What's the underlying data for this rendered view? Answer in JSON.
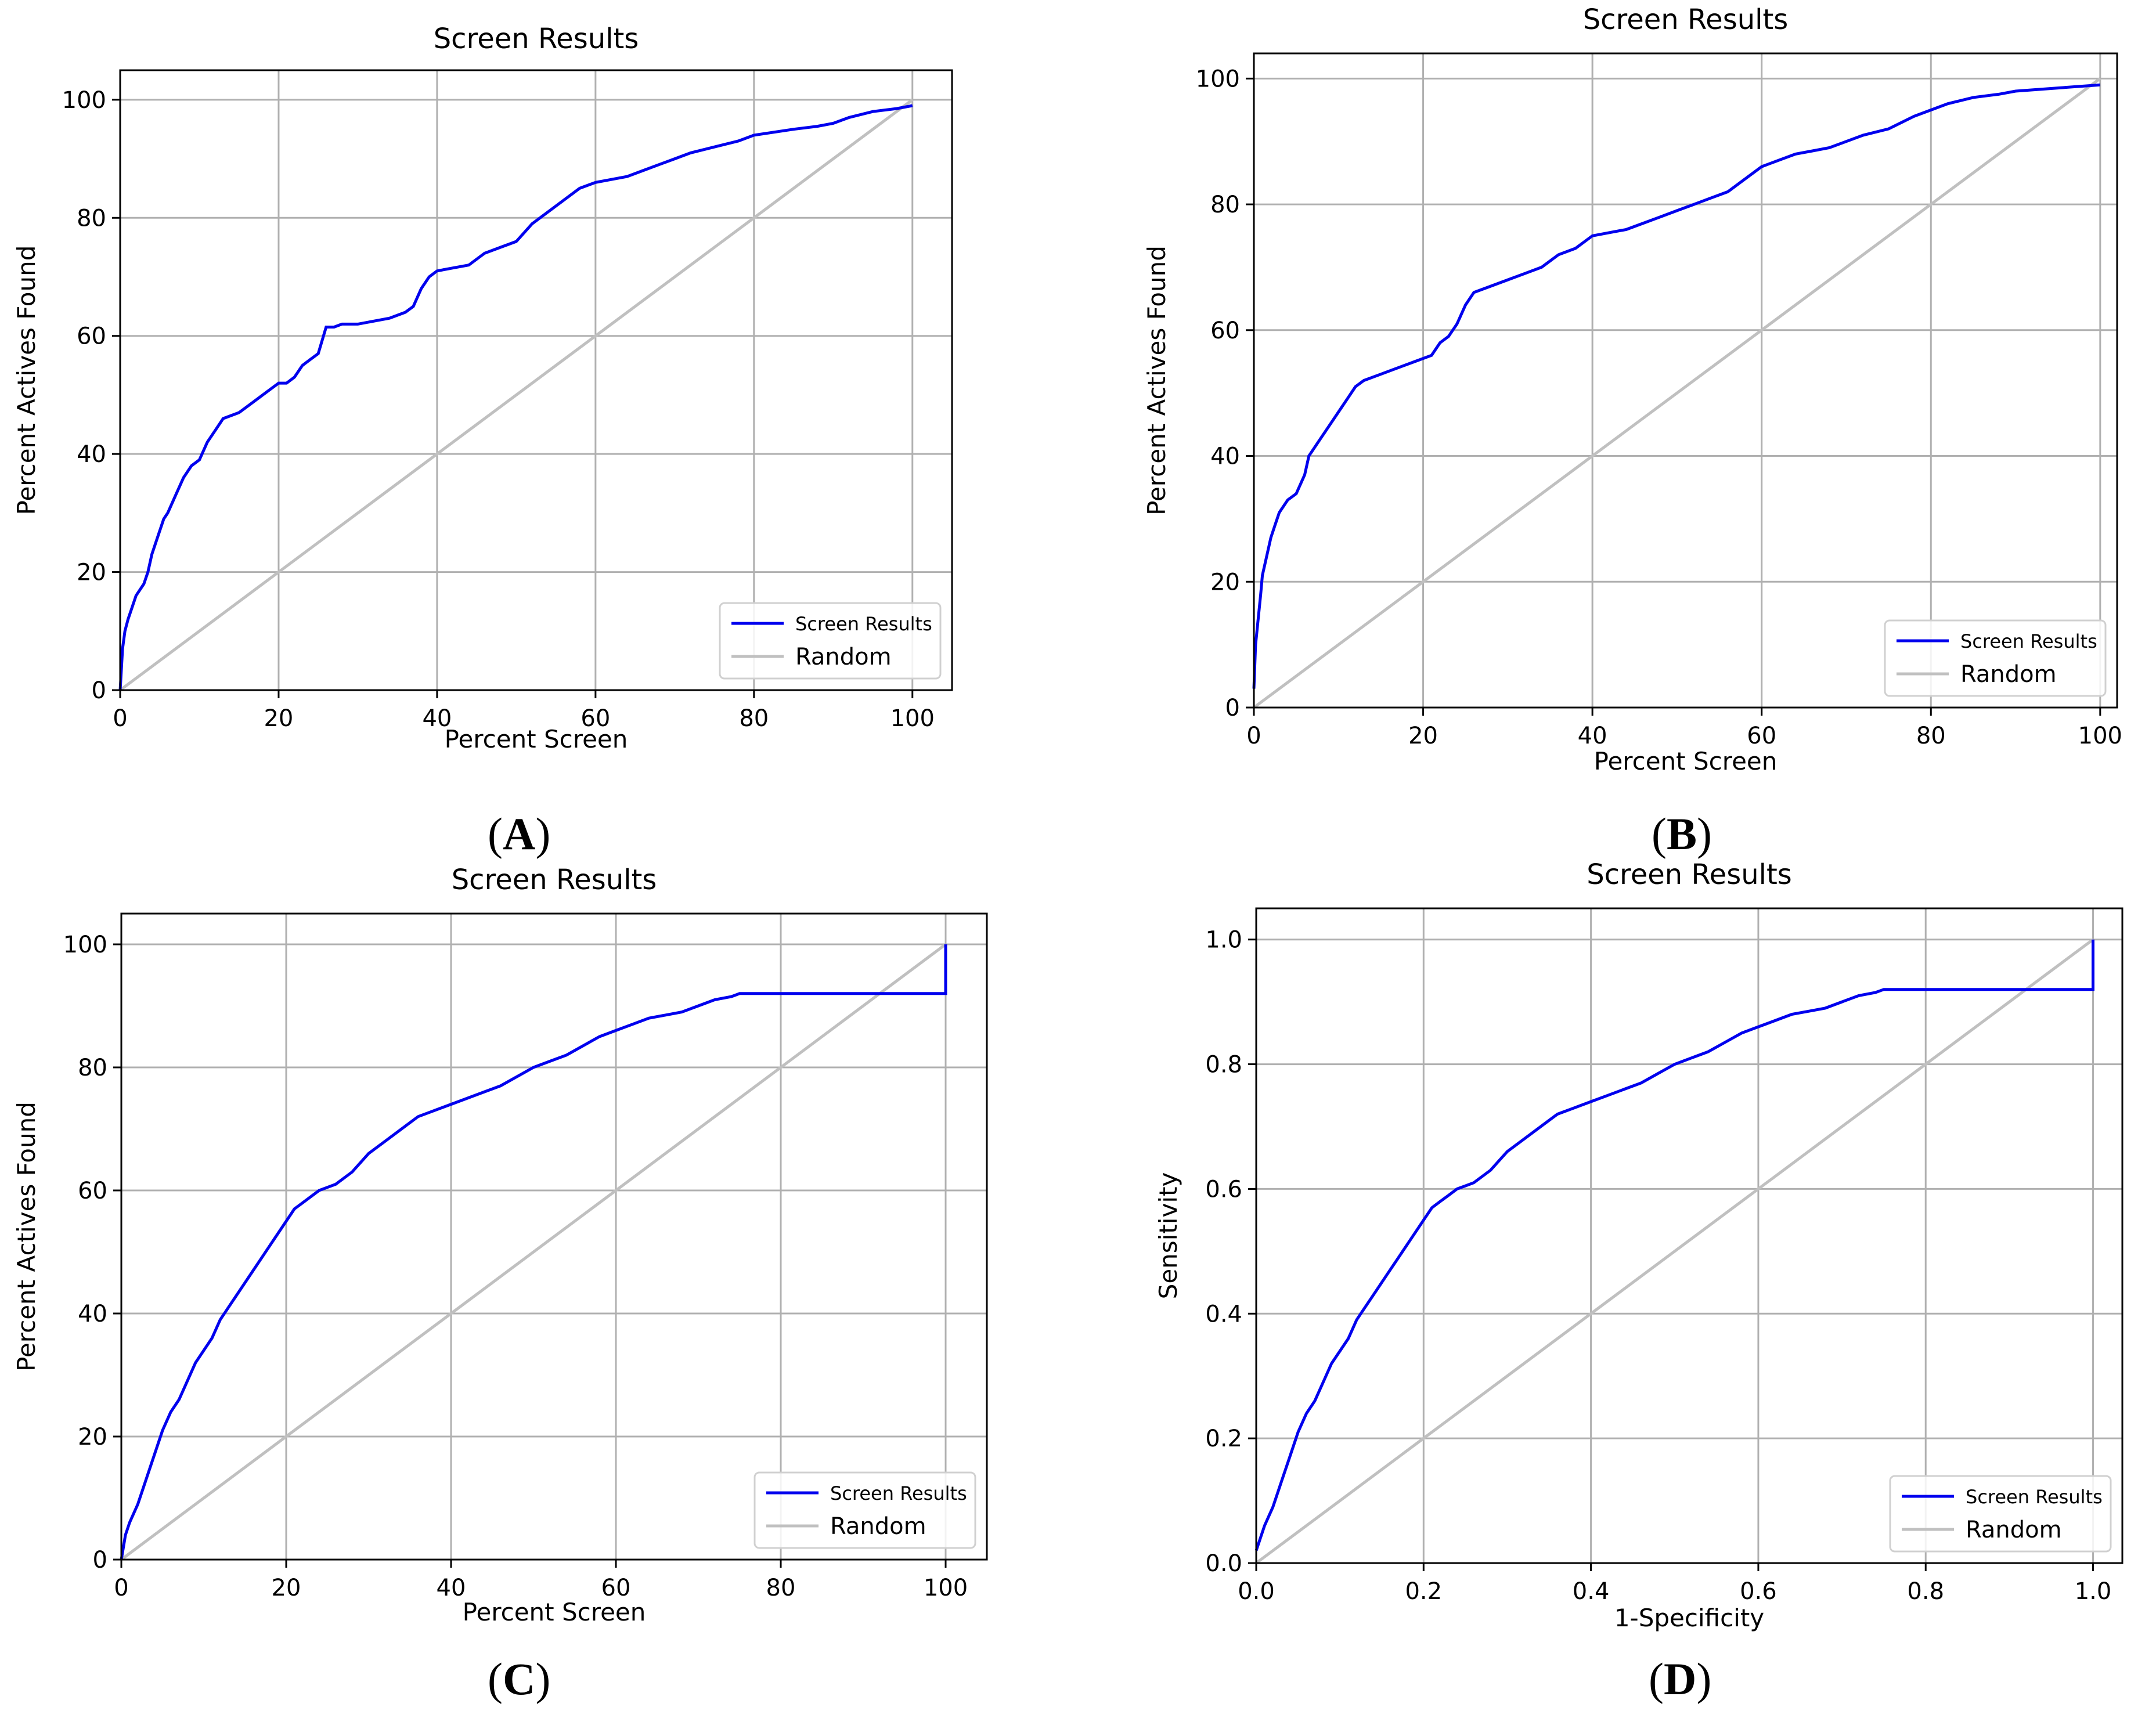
{
  "chart_data": [
    {
      "type": "line",
      "panel": "A",
      "title": "Screen Results",
      "xlabel": "Percent Screen",
      "ylabel": "Percent Actives Found",
      "xlim": [
        0,
        105
      ],
      "ylim": [
        0,
        105
      ],
      "xticks": [
        0,
        20,
        40,
        60,
        80,
        100
      ],
      "yticks": [
        0,
        20,
        40,
        60,
        80,
        100
      ],
      "tick_labels_x": [
        "0",
        "20",
        "40",
        "60",
        "80",
        "100"
      ],
      "tick_labels_y": [
        "0",
        "20",
        "40",
        "60",
        "80",
        "100"
      ],
      "grid": true,
      "legend_position": "bottom-right",
      "series": [
        {
          "name": "Screen Results",
          "color": "#0000ee",
          "x": [
            0,
            0.3,
            0.6,
            1,
            1.5,
            2,
            2.5,
            3,
            3.5,
            4,
            4.5,
            5,
            5.5,
            6,
            7,
            8,
            9,
            10,
            11,
            12,
            13,
            14,
            15,
            16,
            17,
            18,
            19,
            20,
            21,
            22,
            23,
            24,
            25,
            26,
            27,
            28,
            30,
            32,
            34,
            36,
            37,
            38,
            39,
            40,
            42,
            44,
            46,
            48,
            50,
            52,
            54,
            56,
            58,
            60,
            62,
            64,
            66,
            68,
            70,
            72,
            75,
            78,
            80,
            85,
            88,
            90,
            92,
            95,
            98,
            100
          ],
          "y": [
            0,
            7,
            10,
            12,
            14,
            16,
            17,
            18,
            20,
            23,
            25,
            27,
            29,
            30,
            33,
            36,
            38,
            39,
            42,
            44,
            46,
            46.5,
            47,
            48,
            49,
            50,
            51,
            52,
            52,
            53,
            55,
            56,
            57,
            61.5,
            61.5,
            62,
            62,
            62.5,
            63,
            64,
            65,
            68,
            70,
            71,
            71.5,
            72,
            74,
            75,
            76,
            79,
            81,
            83,
            85,
            86,
            86.5,
            87,
            88,
            89,
            90,
            91,
            92,
            93,
            94,
            95,
            95.5,
            96,
            97,
            98,
            98.5,
            99
          ]
        },
        {
          "name": "Random",
          "color": "#c0c0c0",
          "x": [
            0,
            100
          ],
          "y": [
            0,
            100
          ]
        }
      ]
    },
    {
      "type": "line",
      "panel": "B",
      "title": "Screen Results",
      "xlabel": "Percent Screen",
      "ylabel": "Percent Actives Found",
      "xlim": [
        0,
        102
      ],
      "ylim": [
        0,
        104
      ],
      "xticks": [
        0,
        20,
        40,
        60,
        80,
        100
      ],
      "yticks": [
        0,
        20,
        40,
        60,
        80,
        100
      ],
      "tick_labels_x": [
        "0",
        "20",
        "40",
        "60",
        "80",
        "100"
      ],
      "tick_labels_y": [
        "0",
        "20",
        "40",
        "60",
        "80",
        "100"
      ],
      "grid": true,
      "legend_position": "bottom-right",
      "series": [
        {
          "name": "Screen Results",
          "color": "#0000ee",
          "x": [
            0,
            0.2,
            0.5,
            0.8,
            1,
            1.5,
            2,
            2.5,
            3,
            4,
            5,
            6,
            6.5,
            7,
            8,
            9,
            10,
            11,
            12,
            13,
            15,
            17,
            19,
            21,
            22,
            23,
            24,
            25,
            26,
            28,
            30,
            32,
            34,
            36,
            38,
            40,
            42,
            44,
            46,
            48,
            50,
            52,
            54,
            56,
            58,
            60,
            62,
            64,
            66,
            68,
            70,
            72,
            75,
            78,
            80,
            82,
            85,
            88,
            90,
            95,
            100
          ],
          "y": [
            3,
            10,
            14,
            18,
            21,
            24,
            27,
            29,
            31,
            33,
            34,
            37,
            40,
            41,
            43,
            45,
            47,
            49,
            51,
            52,
            53,
            54,
            55,
            56,
            58,
            59,
            61,
            64,
            66,
            67,
            68,
            69,
            70,
            72,
            73,
            75,
            75.5,
            76,
            77,
            78,
            79,
            80,
            81,
            82,
            84,
            86,
            87,
            88,
            88.5,
            89,
            90,
            91,
            92,
            94,
            95,
            96,
            97,
            97.5,
            98,
            98.5,
            99
          ]
        },
        {
          "name": "Random",
          "color": "#c0c0c0",
          "x": [
            0,
            100
          ],
          "y": [
            0,
            100
          ]
        }
      ]
    },
    {
      "type": "line",
      "panel": "C",
      "title": "Screen Results",
      "xlabel": "Percent Screen",
      "ylabel": "Percent Actives Found",
      "xlim": [
        0,
        105
      ],
      "ylim": [
        0,
        105
      ],
      "xticks": [
        0,
        20,
        40,
        60,
        80,
        100
      ],
      "yticks": [
        0,
        20,
        40,
        60,
        80,
        100
      ],
      "tick_labels_x": [
        "0",
        "20",
        "40",
        "60",
        "80",
        "100"
      ],
      "tick_labels_y": [
        "0",
        "20",
        "40",
        "60",
        "80",
        "100"
      ],
      "grid": true,
      "legend_position": "bottom-right",
      "series": [
        {
          "name": "Screen Results",
          "color": "#0000ee",
          "x": [
            0,
            0.5,
            1,
            2,
            3,
            4,
            5,
            6,
            7,
            8,
            9,
            10,
            11,
            12,
            13,
            14,
            15,
            16,
            17,
            18,
            19,
            20,
            21,
            22,
            23,
            24,
            25,
            26,
            28,
            30,
            32,
            34,
            36,
            38,
            40,
            42,
            44,
            46,
            48,
            50,
            52,
            54,
            56,
            58,
            60,
            62,
            64,
            66,
            68,
            70,
            72,
            74,
            75,
            80,
            85,
            90,
            95,
            100,
            100
          ],
          "y": [
            0,
            4,
            6,
            9,
            13,
            17,
            21,
            24,
            26,
            29,
            32,
            34,
            36,
            39,
            41,
            43,
            45,
            47,
            49,
            51,
            53,
            55,
            57,
            58,
            59,
            60,
            60.5,
            61,
            63,
            66,
            68,
            70,
            72,
            73,
            74,
            75,
            76,
            77,
            78.5,
            80,
            81,
            82,
            83.5,
            85,
            86,
            87,
            88,
            88.5,
            89,
            90,
            91,
            91.5,
            92,
            92,
            92,
            92,
            92,
            92,
            100
          ]
        },
        {
          "name": "Random",
          "color": "#c0c0c0",
          "x": [
            0,
            100
          ],
          "y": [
            0,
            100
          ]
        }
      ]
    },
    {
      "type": "line",
      "panel": "D",
      "title": "Screen Results",
      "xlabel": "1-Specificity",
      "ylabel": "Sensitivity",
      "xlim": [
        0,
        1.035
      ],
      "ylim": [
        0,
        1.05
      ],
      "xticks": [
        0,
        0.2,
        0.4,
        0.6,
        0.8,
        1.0
      ],
      "yticks": [
        0,
        0.2,
        0.4,
        0.6,
        0.8,
        1.0
      ],
      "tick_labels_x": [
        "0.0",
        "0.2",
        "0.4",
        "0.6",
        "0.8",
        "1.0"
      ],
      "tick_labels_y": [
        "0.0",
        "0.2",
        "0.4",
        "0.6",
        "0.8",
        "1.0"
      ],
      "grid": true,
      "legend_position": "bottom-right",
      "series": [
        {
          "name": "Screen Results",
          "color": "#0000ee",
          "x": [
            0,
            0.005,
            0.01,
            0.02,
            0.03,
            0.04,
            0.05,
            0.06,
            0.07,
            0.08,
            0.09,
            0.1,
            0.11,
            0.12,
            0.13,
            0.14,
            0.15,
            0.16,
            0.17,
            0.18,
            0.19,
            0.2,
            0.21,
            0.22,
            0.23,
            0.24,
            0.25,
            0.26,
            0.28,
            0.3,
            0.32,
            0.34,
            0.36,
            0.38,
            0.4,
            0.42,
            0.44,
            0.46,
            0.48,
            0.5,
            0.52,
            0.54,
            0.56,
            0.58,
            0.6,
            0.62,
            0.64,
            0.66,
            0.68,
            0.7,
            0.72,
            0.74,
            0.75,
            0.8,
            0.85,
            0.9,
            0.95,
            1.0,
            1.0
          ],
          "y": [
            0.02,
            0.04,
            0.06,
            0.09,
            0.13,
            0.17,
            0.21,
            0.24,
            0.26,
            0.29,
            0.32,
            0.34,
            0.36,
            0.39,
            0.41,
            0.43,
            0.45,
            0.47,
            0.49,
            0.51,
            0.53,
            0.55,
            0.57,
            0.58,
            0.59,
            0.6,
            0.605,
            0.61,
            0.63,
            0.66,
            0.68,
            0.7,
            0.72,
            0.73,
            0.74,
            0.75,
            0.76,
            0.77,
            0.785,
            0.8,
            0.81,
            0.82,
            0.835,
            0.85,
            0.86,
            0.87,
            0.88,
            0.885,
            0.89,
            0.9,
            0.91,
            0.915,
            0.92,
            0.92,
            0.92,
            0.92,
            0.92,
            0.92,
            1.0
          ]
        },
        {
          "name": "Random",
          "color": "#c0c0c0",
          "x": [
            0,
            1
          ],
          "y": [
            0,
            1
          ]
        }
      ]
    }
  ],
  "panel_labels": [
    "A",
    "B",
    "C",
    "D"
  ],
  "colors": {
    "screen": "#0000ee",
    "random": "#c0c0c0",
    "grid": "#b0b0b0",
    "axis": "#000000"
  }
}
